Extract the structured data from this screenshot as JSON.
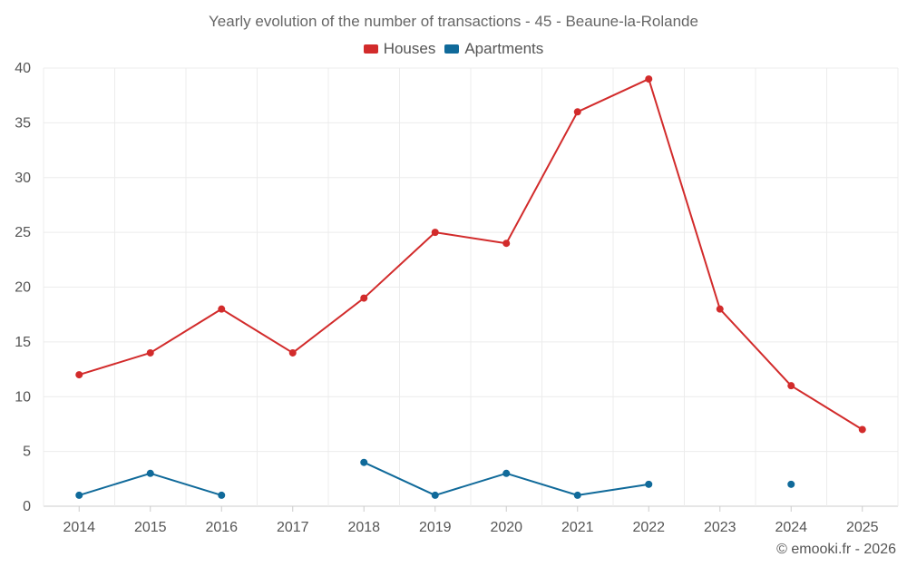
{
  "chart_data": {
    "type": "line",
    "title": "Yearly evolution of the number of transactions - 45 - Beaune-la-Rolande",
    "categories": [
      "2014",
      "2015",
      "2016",
      "2017",
      "2018",
      "2019",
      "2020",
      "2021",
      "2022",
      "2023",
      "2024",
      "2025"
    ],
    "ylim": [
      0,
      40
    ],
    "yticks": [
      0,
      5,
      10,
      15,
      20,
      25,
      30,
      35,
      40
    ],
    "grid": true,
    "legend_position": "top-center",
    "series": [
      {
        "name": "Houses",
        "color": "#d22b2b",
        "values": [
          12,
          14,
          18,
          14,
          19,
          25,
          24,
          36,
          39,
          18,
          11,
          7
        ]
      },
      {
        "name": "Apartments",
        "color": "#106a9a",
        "values": [
          1,
          3,
          1,
          null,
          4,
          1,
          3,
          1,
          2,
          null,
          2,
          null
        ]
      }
    ]
  },
  "footer": "© emooki.fr - 2026"
}
